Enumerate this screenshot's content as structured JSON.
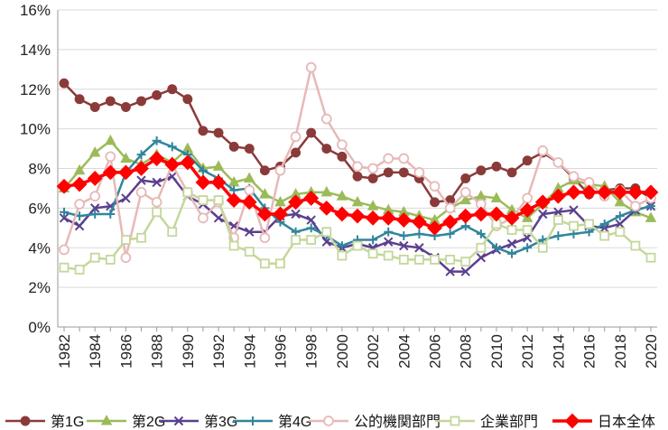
{
  "chart_data": {
    "type": "line",
    "title": "",
    "xlabel": "",
    "ylabel": "",
    "ylim": [
      0,
      16
    ],
    "yticks": [
      "0%",
      "2%",
      "4%",
      "6%",
      "8%",
      "10%",
      "12%",
      "14%",
      "16%"
    ],
    "x": [
      1982,
      1983,
      1984,
      1985,
      1986,
      1987,
      1988,
      1989,
      1990,
      1991,
      1992,
      1993,
      1994,
      1995,
      1996,
      1997,
      1998,
      1999,
      2000,
      2001,
      2002,
      2003,
      2004,
      2005,
      2006,
      2007,
      2008,
      2009,
      2010,
      2011,
      2012,
      2013,
      2014,
      2015,
      2016,
      2017,
      2018,
      2019,
      2020
    ],
    "xtick_labels": [
      "1982",
      "1984",
      "1986",
      "1988",
      "1990",
      "1992",
      "1994",
      "1996",
      "1998",
      "2000",
      "2002",
      "2004",
      "2006",
      "2008",
      "2010",
      "2012",
      "2014",
      "2016",
      "2018",
      "2020"
    ],
    "legend_position": "bottom",
    "series": [
      {
        "name": "第1G",
        "color": "#8B3A3A",
        "marker": "circle",
        "values": [
          12.3,
          11.5,
          11.1,
          11.4,
          11.1,
          11.4,
          11.7,
          12.0,
          11.5,
          9.9,
          9.8,
          9.1,
          9.0,
          7.9,
          8.1,
          8.8,
          9.8,
          9.0,
          8.6,
          7.6,
          7.5,
          7.8,
          7.8,
          7.5,
          6.3,
          6.4,
          7.5,
          7.9,
          8.1,
          7.8,
          8.4,
          8.8,
          8.3,
          7.5,
          6.7,
          6.9,
          7.0,
          7.0,
          6.5
        ]
      },
      {
        "name": "第2G",
        "color": "#9BBB59",
        "marker": "triangle",
        "values": [
          7.0,
          7.9,
          8.8,
          9.4,
          8.5,
          8.2,
          8.7,
          8.3,
          9.0,
          8.0,
          8.1,
          7.3,
          7.5,
          6.7,
          6.3,
          6.7,
          6.8,
          6.8,
          6.6,
          6.3,
          6.1,
          5.9,
          5.8,
          5.6,
          5.4,
          6.0,
          6.4,
          6.6,
          6.5,
          5.9,
          5.5,
          6.2,
          7.0,
          7.4,
          7.2,
          7.1,
          6.3,
          5.8,
          5.5
        ]
      },
      {
        "name": "第3G",
        "color": "#5B3F8F",
        "marker": "x",
        "values": [
          5.5,
          5.1,
          6.0,
          6.1,
          6.5,
          7.4,
          7.3,
          7.6,
          6.6,
          6.2,
          5.5,
          5.1,
          4.8,
          4.8,
          5.6,
          5.7,
          5.4,
          4.3,
          4.0,
          4.2,
          4.0,
          4.3,
          4.1,
          4.0,
          3.5,
          2.8,
          2.8,
          3.5,
          3.9,
          4.2,
          4.5,
          5.7,
          5.8,
          5.9,
          5.1,
          5.0,
          5.2,
          5.9,
          6.1
        ]
      },
      {
        "name": "第4G",
        "color": "#31859C",
        "marker": "plus",
        "values": [
          5.8,
          5.6,
          5.7,
          5.7,
          7.8,
          8.7,
          9.4,
          9.1,
          8.7,
          7.9,
          7.5,
          6.9,
          7.0,
          6.0,
          5.3,
          4.8,
          5.0,
          4.6,
          4.1,
          4.4,
          4.4,
          4.8,
          4.6,
          4.7,
          4.6,
          4.7,
          5.1,
          4.7,
          4.0,
          3.7,
          4.0,
          4.4,
          4.6,
          4.7,
          4.8,
          5.2,
          5.6,
          5.9,
          6.1
        ]
      },
      {
        "name": "公的機関部門",
        "color": "#E6B9B8",
        "marker": "circle-open",
        "values": [
          3.9,
          6.2,
          6.6,
          8.6,
          3.5,
          6.8,
          6.3,
          8.2,
          6.8,
          5.5,
          6.3,
          4.5,
          6.9,
          4.5,
          7.9,
          9.6,
          13.1,
          10.5,
          9.2,
          8.1,
          8.0,
          8.5,
          8.5,
          7.8,
          7.1,
          6.0,
          6.8,
          6.2,
          5.1,
          5.5,
          6.5,
          8.9,
          8.3,
          7.6,
          7.3,
          6.6,
          6.9,
          6.1,
          6.5
        ]
      },
      {
        "name": "企業部門",
        "color": "#C4D79B",
        "marker": "square-open",
        "values": [
          3.0,
          2.9,
          3.5,
          3.4,
          4.4,
          4.5,
          5.8,
          4.8,
          6.8,
          6.4,
          6.4,
          4.1,
          3.8,
          3.2,
          3.2,
          4.4,
          4.4,
          4.8,
          3.6,
          4.1,
          3.7,
          3.6,
          3.4,
          3.4,
          3.4,
          3.4,
          3.3,
          4.0,
          5.2,
          4.9,
          4.9,
          4.0,
          5.4,
          5.1,
          5.2,
          4.6,
          4.8,
          4.1,
          3.5
        ]
      },
      {
        "name": "日本全体",
        "color": "#FF0000",
        "marker": "diamond",
        "values": [
          7.1,
          7.2,
          7.5,
          7.8,
          7.8,
          8.0,
          8.5,
          8.2,
          8.3,
          7.3,
          7.3,
          6.4,
          6.3,
          5.7,
          5.7,
          6.3,
          6.5,
          6.0,
          5.7,
          5.6,
          5.5,
          5.5,
          5.4,
          5.3,
          5.0,
          5.3,
          5.6,
          5.7,
          5.7,
          5.5,
          5.9,
          6.3,
          6.6,
          6.8,
          6.8,
          6.8,
          6.8,
          6.8,
          6.8
        ]
      }
    ]
  }
}
